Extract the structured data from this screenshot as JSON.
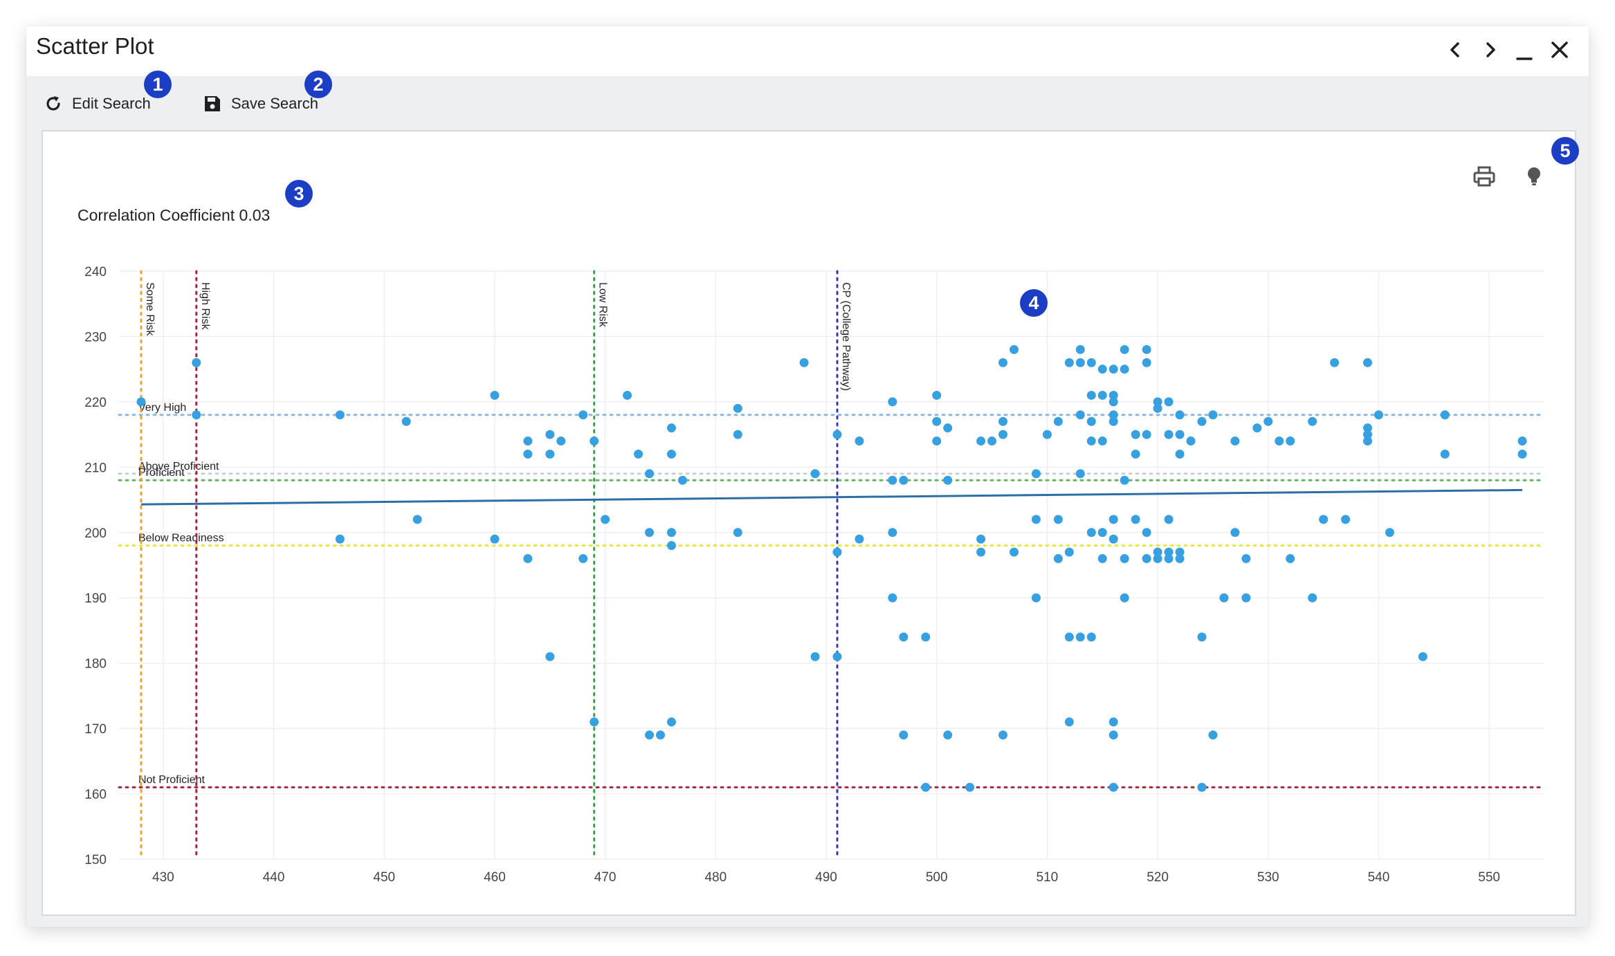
{
  "window": {
    "title": "Scatter Plot"
  },
  "toolbar": {
    "edit_label": "Edit Search",
    "save_label": "Save Search"
  },
  "badges": [
    "1",
    "2",
    "3",
    "4",
    "5"
  ],
  "icons": {
    "refresh": "refresh-icon",
    "save": "save-icon",
    "print": "print-icon",
    "bulb": "lightbulb-icon",
    "back": "chevron-left-icon",
    "forward": "chevron-right-icon",
    "minimize": "minimize-icon",
    "close": "close-icon"
  },
  "colors": {
    "point": "#37a0e0",
    "trend": "#2b6ea6",
    "badge": "#1b3ec4"
  },
  "chart_data": {
    "type": "scatter",
    "title": "Correlation Coefficient 0.03",
    "xlabel": "",
    "ylabel": "",
    "xlim": [
      426,
      555
    ],
    "ylim": [
      150,
      240
    ],
    "x_ticks": [
      430,
      440,
      450,
      460,
      470,
      480,
      490,
      500,
      510,
      520,
      530,
      540,
      550
    ],
    "y_ticks": [
      150,
      160,
      170,
      180,
      190,
      200,
      210,
      220,
      230,
      240
    ],
    "grid": true,
    "trendline": {
      "x": [
        428,
        553
      ],
      "y": [
        204.3,
        206.5
      ]
    },
    "vertical_reference_lines": [
      {
        "label": "Some Risk",
        "x": 428,
        "color": "#f0a030"
      },
      {
        "label": "High Risk",
        "x": 433,
        "color": "#a3243c"
      },
      {
        "label": "Low Risk",
        "x": 469,
        "color": "#2aa84a"
      },
      {
        "label": "CP (College Pathway)",
        "x": 491,
        "color": "#3a36b0"
      }
    ],
    "horizontal_reference_lines": [
      {
        "label": "Very High",
        "y": 218,
        "color": "#8ab8e0"
      },
      {
        "label": "Above Proficient",
        "y": 209,
        "color": "#c5d0dc"
      },
      {
        "label": "Proficient",
        "y": 208,
        "color": "#5fb85f"
      },
      {
        "label": "Below Readiness",
        "y": 198,
        "color": "#e8e83a"
      },
      {
        "label": "Not Proficient",
        "y": 161,
        "color": "#a3243c"
      }
    ],
    "points": [
      [
        428,
        220
      ],
      [
        433,
        226
      ],
      [
        433,
        218
      ],
      [
        446,
        218
      ],
      [
        446,
        199
      ],
      [
        452,
        217
      ],
      [
        453,
        202
      ],
      [
        460,
        221
      ],
      [
        460,
        199
      ],
      [
        463,
        214
      ],
      [
        463,
        212
      ],
      [
        463,
        196
      ],
      [
        465,
        215
      ],
      [
        465,
        212
      ],
      [
        465,
        181
      ],
      [
        466,
        214
      ],
      [
        468,
        218
      ],
      [
        468,
        196
      ],
      [
        469,
        214
      ],
      [
        469,
        171
      ],
      [
        470,
        202
      ],
      [
        472,
        221
      ],
      [
        473,
        212
      ],
      [
        474,
        209
      ],
      [
        474,
        200
      ],
      [
        474,
        169
      ],
      [
        475,
        169
      ],
      [
        476,
        216
      ],
      [
        476,
        212
      ],
      [
        476,
        200
      ],
      [
        476,
        198
      ],
      [
        476,
        171
      ],
      [
        477,
        208
      ],
      [
        482,
        219
      ],
      [
        482,
        215
      ],
      [
        482,
        200
      ],
      [
        488,
        226
      ],
      [
        489,
        209
      ],
      [
        489,
        181
      ],
      [
        491,
        215
      ],
      [
        491,
        197
      ],
      [
        491,
        181
      ],
      [
        493,
        214
      ],
      [
        493,
        199
      ],
      [
        496,
        220
      ],
      [
        496,
        208
      ],
      [
        496,
        200
      ],
      [
        496,
        190
      ],
      [
        497,
        208
      ],
      [
        497,
        184
      ],
      [
        497,
        169
      ],
      [
        499,
        184
      ],
      [
        499,
        161
      ],
      [
        500,
        221
      ],
      [
        500,
        217
      ],
      [
        500,
        214
      ],
      [
        501,
        216
      ],
      [
        501,
        208
      ],
      [
        501,
        169
      ],
      [
        503,
        161
      ],
      [
        504,
        214
      ],
      [
        504,
        199
      ],
      [
        504,
        197
      ],
      [
        505,
        214
      ],
      [
        506,
        226
      ],
      [
        506,
        217
      ],
      [
        506,
        215
      ],
      [
        506,
        169
      ],
      [
        507,
        228
      ],
      [
        507,
        197
      ],
      [
        509,
        209
      ],
      [
        509,
        202
      ],
      [
        509,
        190
      ],
      [
        510,
        215
      ],
      [
        511,
        217
      ],
      [
        511,
        202
      ],
      [
        511,
        196
      ],
      [
        512,
        226
      ],
      [
        512,
        197
      ],
      [
        512,
        184
      ],
      [
        512,
        171
      ],
      [
        513,
        228
      ],
      [
        513,
        226
      ],
      [
        513,
        218
      ],
      [
        513,
        209
      ],
      [
        513,
        184
      ],
      [
        514,
        226
      ],
      [
        514,
        221
      ],
      [
        514,
        217
      ],
      [
        514,
        214
      ],
      [
        514,
        200
      ],
      [
        514,
        184
      ],
      [
        515,
        225
      ],
      [
        515,
        221
      ],
      [
        515,
        214
      ],
      [
        515,
        200
      ],
      [
        515,
        196
      ],
      [
        516,
        225
      ],
      [
        516,
        221
      ],
      [
        516,
        220
      ],
      [
        516,
        218
      ],
      [
        516,
        217
      ],
      [
        516,
        202
      ],
      [
        516,
        199
      ],
      [
        516,
        171
      ],
      [
        516,
        169
      ],
      [
        516,
        161
      ],
      [
        517,
        228
      ],
      [
        517,
        225
      ],
      [
        517,
        208
      ],
      [
        517,
        196
      ],
      [
        517,
        190
      ],
      [
        518,
        215
      ],
      [
        518,
        212
      ],
      [
        518,
        202
      ],
      [
        519,
        228
      ],
      [
        519,
        226
      ],
      [
        519,
        215
      ],
      [
        519,
        200
      ],
      [
        519,
        196
      ],
      [
        520,
        220
      ],
      [
        520,
        219
      ],
      [
        520,
        197
      ],
      [
        520,
        196
      ],
      [
        521,
        220
      ],
      [
        521,
        215
      ],
      [
        521,
        202
      ],
      [
        521,
        197
      ],
      [
        521,
        196
      ],
      [
        522,
        218
      ],
      [
        522,
        215
      ],
      [
        522,
        212
      ],
      [
        522,
        197
      ],
      [
        522,
        196
      ],
      [
        523,
        214
      ],
      [
        524,
        217
      ],
      [
        524,
        184
      ],
      [
        524,
        161
      ],
      [
        525,
        218
      ],
      [
        525,
        169
      ],
      [
        526,
        190
      ],
      [
        527,
        214
      ],
      [
        527,
        200
      ],
      [
        528,
        196
      ],
      [
        528,
        190
      ],
      [
        529,
        216
      ],
      [
        530,
        217
      ],
      [
        531,
        214
      ],
      [
        532,
        214
      ],
      [
        532,
        196
      ],
      [
        534,
        217
      ],
      [
        534,
        190
      ],
      [
        535,
        202
      ],
      [
        536,
        226
      ],
      [
        537,
        202
      ],
      [
        539,
        226
      ],
      [
        539,
        216
      ],
      [
        539,
        215
      ],
      [
        539,
        214
      ],
      [
        540,
        218
      ],
      [
        541,
        200
      ],
      [
        544,
        181
      ],
      [
        546,
        218
      ],
      [
        546,
        212
      ],
      [
        553,
        214
      ],
      [
        553,
        212
      ]
    ]
  }
}
